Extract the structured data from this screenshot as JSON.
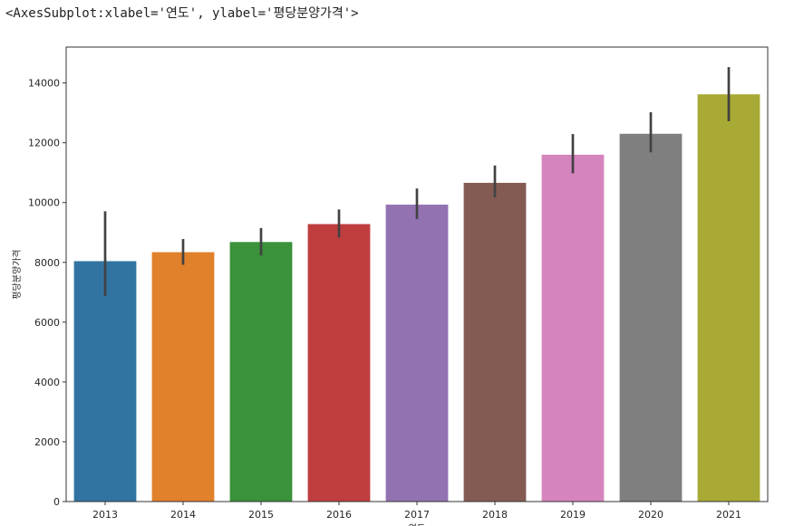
{
  "output_repr": "<AxesSubplot:xlabel='연도', ylabel='평당분양가격'>",
  "chart_data": {
    "type": "bar",
    "xlabel": "연도",
    "ylabel": "평당분양가격",
    "categories": [
      "2013",
      "2014",
      "2015",
      "2016",
      "2017",
      "2018",
      "2019",
      "2020",
      "2021"
    ],
    "values": [
      8040,
      8340,
      8680,
      9280,
      9930,
      10660,
      11600,
      12300,
      13620
    ],
    "error_low": [
      6870,
      7920,
      8230,
      8830,
      9450,
      10170,
      10980,
      11680,
      12720
    ],
    "error_high": [
      9710,
      8780,
      9150,
      9770,
      10470,
      11240,
      12290,
      13020,
      14530
    ],
    "colors": [
      "#3274a1",
      "#e1812c",
      "#3a923a",
      "#c03d3e",
      "#9372b2",
      "#845b53",
      "#d684bd",
      "#7f7f7f",
      "#a9aa35"
    ],
    "ylim": [
      0,
      15200
    ],
    "yticks": [
      0,
      2000,
      4000,
      6000,
      8000,
      10000,
      12000,
      14000
    ],
    "grid": false,
    "legend": "none"
  }
}
